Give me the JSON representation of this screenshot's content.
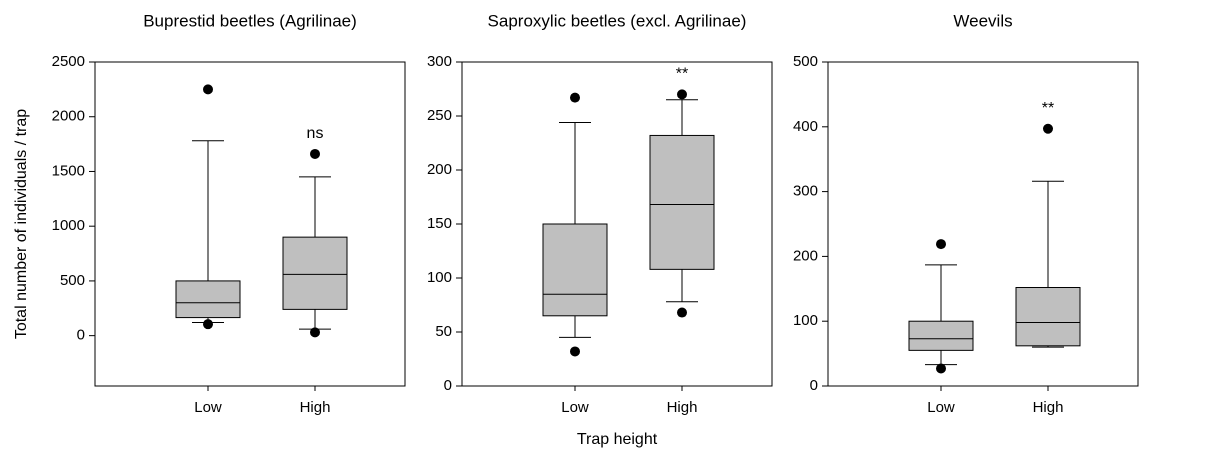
{
  "chart_data": [
    {
      "type": "box",
      "title": "Buprestid beetles (Agrilinae)",
      "ylabel": "Total number of individuals / trap",
      "categories": [
        "Low",
        "High"
      ],
      "color": "#bfbfbf",
      "boxes": [
        {
          "whislo": 120,
          "q1": 165,
          "med": 300,
          "q3": 500,
          "whishi": 1780,
          "fliers": [
            2250,
            105
          ]
        },
        {
          "whislo": 60,
          "q1": 240,
          "med": 560,
          "q3": 900,
          "whishi": 1450,
          "fliers": [
            1660,
            30
          ]
        }
      ],
      "annotations": [
        {
          "category": "High",
          "text": "ns"
        }
      ],
      "ylim": [
        -460,
        2500
      ],
      "yticks": [
        0,
        500,
        1000,
        1500,
        2000,
        2500
      ]
    },
    {
      "type": "box",
      "title": "Saproxylic beetles (excl. Agrilinae)",
      "xlabel": "Trap height",
      "categories": [
        "Low",
        "High"
      ],
      "color": "#bfbfbf",
      "boxes": [
        {
          "whislo": 45,
          "q1": 65,
          "med": 85,
          "q3": 150,
          "whishi": 244,
          "fliers": [
            267,
            32
          ]
        },
        {
          "whislo": 78,
          "q1": 108,
          "med": 168,
          "q3": 232,
          "whishi": 265,
          "fliers": [
            270,
            68
          ]
        }
      ],
      "annotations": [
        {
          "category": "High",
          "text": "**"
        }
      ],
      "ylim": [
        0,
        300
      ],
      "yticks": [
        0,
        50,
        100,
        150,
        200,
        250,
        300
      ]
    },
    {
      "type": "box",
      "title": "Weevils",
      "categories": [
        "Low",
        "High"
      ],
      "color": "#bfbfbf",
      "boxes": [
        {
          "whislo": 33,
          "q1": 55,
          "med": 73,
          "q3": 100,
          "whishi": 187,
          "fliers": [
            219,
            27
          ]
        },
        {
          "whislo": 60,
          "q1": 62,
          "med": 98,
          "q3": 152,
          "whishi": 316,
          "fliers": [
            397
          ]
        }
      ],
      "annotations": [
        {
          "category": "High",
          "text": "**"
        }
      ],
      "ylim": [
        0,
        500
      ],
      "yticks": [
        0,
        100,
        200,
        300,
        400,
        500
      ]
    }
  ]
}
